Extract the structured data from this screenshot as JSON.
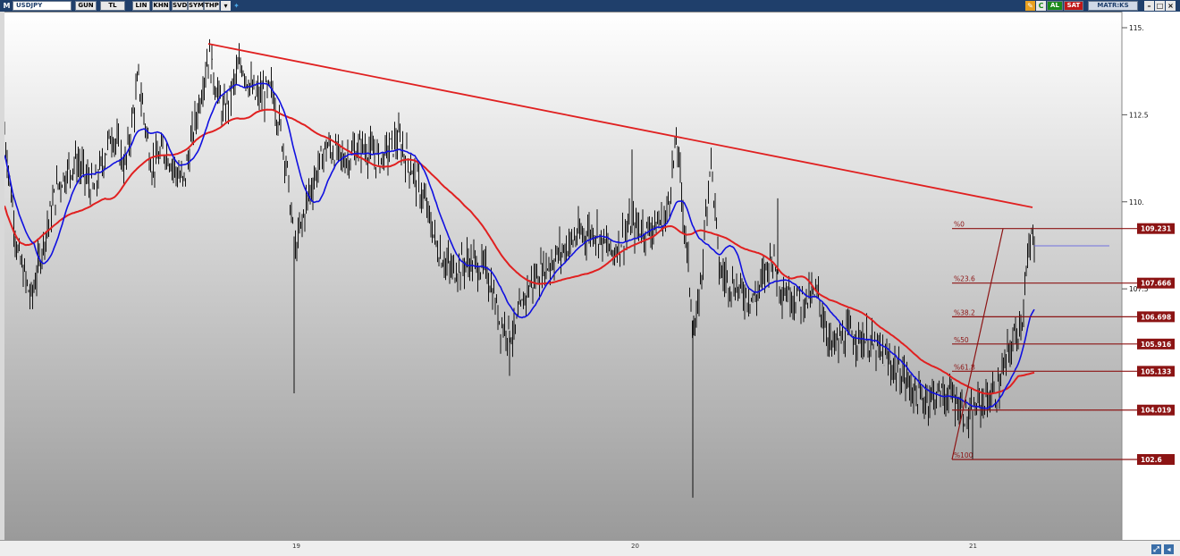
{
  "toolbar": {
    "logo": "M",
    "symbol": "USDJPY",
    "buttons": [
      "GUN",
      "TL",
      "LIN",
      "KHN",
      "SVD",
      "SYM",
      "THP"
    ],
    "al_label": "AL",
    "sat_label": "SAT",
    "matriks_label": "MATR:KS"
  },
  "chart_data": {
    "type": "line",
    "title": "",
    "y_ticks": [
      "115.",
      "112.5",
      "110.",
      "107.5"
    ],
    "x_ticks": [
      "19",
      "20",
      "21"
    ],
    "ylim": [
      100.6,
      115.2
    ],
    "colors": {
      "price": "#111111",
      "ma_fast": "#1010e0",
      "ma_slow": "#e02020",
      "trend": "#e02020",
      "fib": "#8c1414"
    },
    "fibonacci": [
      {
        "label": "%0",
        "value": "109.231"
      },
      {
        "label": "%23.6",
        "value": "107.666"
      },
      {
        "label": "%38.2",
        "value": "106.698"
      },
      {
        "label": "%50",
        "value": "105.916"
      },
      {
        "label": "%61.8",
        "value": "105.133"
      },
      {
        "label": "",
        "value": "104.019"
      },
      {
        "label": "%100",
        "value": "102.6"
      }
    ]
  }
}
